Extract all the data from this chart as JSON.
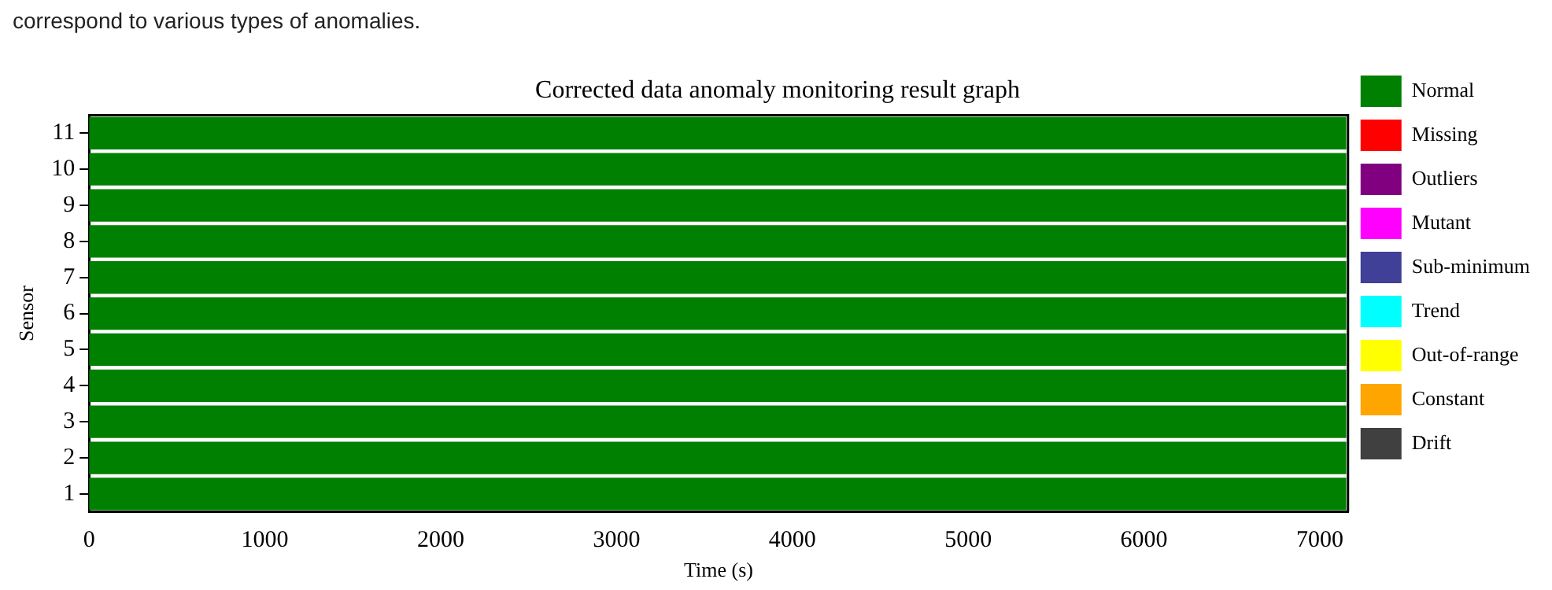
{
  "chart_data": {
    "type": "bar",
    "orientation": "horizontal",
    "stacked": true,
    "title": "Corrected data anomaly monitoring result graph",
    "xlabel": "Time (s)",
    "ylabel": "Sensor",
    "annotations": [
      "correspond to various types of anomalies."
    ],
    "categories": [
      "11",
      "10",
      "9",
      "8",
      "7",
      "6",
      "5",
      "4",
      "3",
      "2",
      "1"
    ],
    "series": [
      {
        "name": "Normal",
        "color": "#008000",
        "values": [
          7150,
          7150,
          7150,
          7150,
          7150,
          7150,
          7150,
          7150,
          7150,
          7150,
          7150
        ]
      },
      {
        "name": "Missing",
        "color": "#ff0000",
        "values": [
          null,
          null,
          null,
          null,
          null,
          null,
          null,
          null,
          null,
          null,
          null
        ]
      },
      {
        "name": "Outliers",
        "color": "#800080",
        "values": [
          null,
          null,
          null,
          null,
          null,
          null,
          null,
          null,
          null,
          null,
          null
        ]
      },
      {
        "name": "Mutant",
        "color": "#ff00ff",
        "values": [
          null,
          null,
          null,
          null,
          null,
          null,
          null,
          null,
          null,
          null,
          null
        ]
      },
      {
        "name": "Sub-minimum",
        "color": "#404099",
        "values": [
          null,
          null,
          null,
          null,
          null,
          null,
          null,
          null,
          null,
          null,
          null
        ]
      },
      {
        "name": "Trend",
        "color": "#00ffff",
        "values": [
          null,
          null,
          null,
          null,
          null,
          null,
          null,
          null,
          null,
          null,
          null
        ]
      },
      {
        "name": "Out-of-range",
        "color": "#ffff00",
        "values": [
          null,
          null,
          null,
          null,
          null,
          null,
          null,
          null,
          null,
          null,
          null
        ]
      },
      {
        "name": "Constant",
        "color": "#ffa500",
        "values": [
          null,
          null,
          null,
          null,
          null,
          null,
          null,
          null,
          null,
          null,
          null
        ]
      },
      {
        "name": "Drift",
        "color": "#404040",
        "values": [
          null,
          null,
          null,
          null,
          null,
          null,
          null,
          null,
          null,
          null,
          null
        ]
      }
    ],
    "xlim": [
      0,
      7160
    ],
    "xticks": [
      0,
      1000,
      2000,
      3000,
      4000,
      5000,
      6000,
      7000
    ],
    "grid": false,
    "legend": "right"
  }
}
